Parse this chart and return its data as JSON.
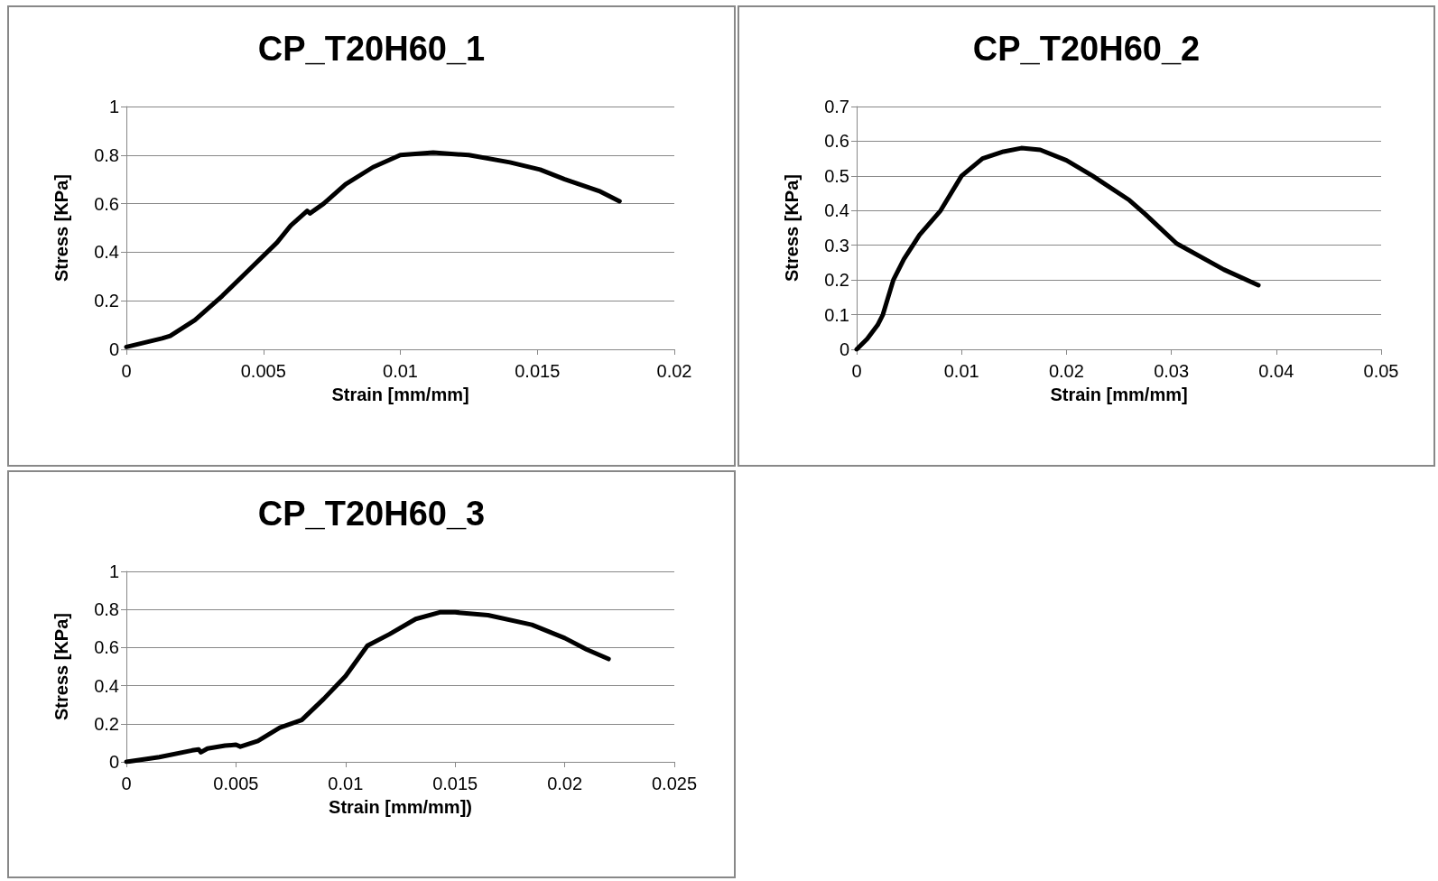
{
  "chart_data": [
    {
      "type": "line",
      "title": "CP_T20H60_1",
      "xlabel": "Strain [mm/mm]",
      "ylabel": "Stress [KPa]",
      "color": "#000000",
      "grid": "y",
      "xlim": [
        0,
        0.02
      ],
      "xticks": [
        0,
        0.005,
        0.01,
        0.015,
        0.02
      ],
      "ylim": [
        0,
        1
      ],
      "yticks": [
        0,
        0.2,
        0.4,
        0.6,
        0.8,
        1
      ],
      "x": [
        0,
        0.0013,
        0.0016,
        0.0025,
        0.0035,
        0.0045,
        0.0055,
        0.006,
        0.0066,
        0.0067,
        0.0072,
        0.008,
        0.009,
        0.01,
        0.0112,
        0.0125,
        0.014,
        0.0151,
        0.016,
        0.0173,
        0.018
      ],
      "values": [
        0.01,
        0.045,
        0.055,
        0.12,
        0.22,
        0.33,
        0.44,
        0.51,
        0.57,
        0.56,
        0.6,
        0.68,
        0.75,
        0.8,
        0.81,
        0.8,
        0.77,
        0.74,
        0.7,
        0.65,
        0.61
      ]
    },
    {
      "type": "line",
      "title": "CP_T20H60_2",
      "xlabel": "Strain [mm/mm]",
      "ylabel": "Stress [KPa]",
      "color": "#000000",
      "grid": "y",
      "xlim": [
        0,
        0.05
      ],
      "xticks": [
        0,
        0.01,
        0.02,
        0.03,
        0.04,
        0.05
      ],
      "ylim": [
        0,
        0.7
      ],
      "yticks": [
        0,
        0.1,
        0.2,
        0.3,
        0.4,
        0.5,
        0.6,
        0.7
      ],
      "x": [
        0,
        0.001,
        0.002,
        0.0025,
        0.0035,
        0.0045,
        0.006,
        0.008,
        0.01,
        0.012,
        0.014,
        0.0157,
        0.0175,
        0.02,
        0.0225,
        0.0235,
        0.026,
        0.0275,
        0.0305,
        0.035,
        0.0383
      ],
      "values": [
        0,
        0.03,
        0.07,
        0.1,
        0.2,
        0.26,
        0.33,
        0.4,
        0.5,
        0.55,
        0.57,
        0.58,
        0.575,
        0.545,
        0.5,
        0.48,
        0.43,
        0.39,
        0.305,
        0.23,
        0.185
      ]
    },
    {
      "type": "line",
      "title": "CP_T20H60_3",
      "xlabel": "Strain [mm/mm])",
      "ylabel": "Stress [KPa]",
      "color": "#000000",
      "grid": "y",
      "xlim": [
        0,
        0.025
      ],
      "xticks": [
        0,
        0.005,
        0.01,
        0.015,
        0.02,
        0.025
      ],
      "ylim": [
        0,
        1
      ],
      "yticks": [
        0,
        0.2,
        0.4,
        0.6,
        0.8,
        1
      ],
      "x": [
        0,
        0.0015,
        0.003,
        0.0033,
        0.0034,
        0.0037,
        0.0045,
        0.005,
        0.0052,
        0.006,
        0.007,
        0.008,
        0.009,
        0.01,
        0.011,
        0.012,
        0.0132,
        0.0143,
        0.015,
        0.0165,
        0.0185,
        0.02,
        0.021,
        0.022
      ],
      "values": [
        0,
        0.025,
        0.06,
        0.065,
        0.05,
        0.07,
        0.085,
        0.09,
        0.08,
        0.11,
        0.18,
        0.22,
        0.33,
        0.45,
        0.61,
        0.67,
        0.75,
        0.785,
        0.785,
        0.77,
        0.72,
        0.65,
        0.59,
        0.54
      ]
    }
  ]
}
